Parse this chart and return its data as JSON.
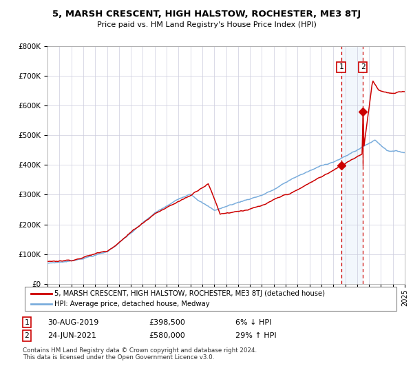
{
  "title": "5, MARSH CRESCENT, HIGH HALSTOW, ROCHESTER, ME3 8TJ",
  "subtitle": "Price paid vs. HM Land Registry's House Price Index (HPI)",
  "legend_line1": "5, MARSH CRESCENT, HIGH HALSTOW, ROCHESTER, ME3 8TJ (detached house)",
  "legend_line2": "HPI: Average price, detached house, Medway",
  "annotation1_date": "30-AUG-2019",
  "annotation1_price": "£398,500",
  "annotation1_pct": "6% ↓ HPI",
  "annotation2_date": "24-JUN-2021",
  "annotation2_price": "£580,000",
  "annotation2_pct": "29% ↑ HPI",
  "footer": "Contains HM Land Registry data © Crown copyright and database right 2024.\nThis data is licensed under the Open Government Licence v3.0.",
  "hpi_color": "#7aaddc",
  "price_color": "#cc0000",
  "sale1_year": 2019.66,
  "sale1_price": 398500,
  "sale2_year": 2021.48,
  "sale2_price": 580000,
  "xmin": 1995,
  "xmax": 2025,
  "ymin": 0,
  "ymax": 800000
}
